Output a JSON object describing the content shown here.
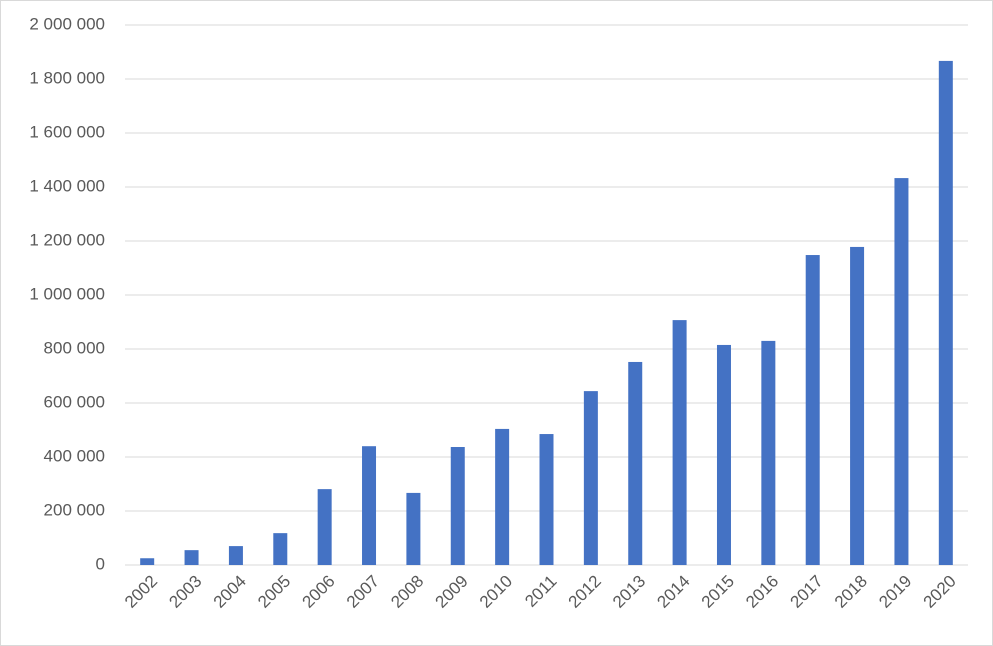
{
  "chart_data": {
    "type": "bar",
    "categories": [
      "2002",
      "2003",
      "2004",
      "2005",
      "2006",
      "2007",
      "2008",
      "2009",
      "2010",
      "2011",
      "2012",
      "2013",
      "2014",
      "2015",
      "2016",
      "2017",
      "2018",
      "2019",
      "2020"
    ],
    "values": [
      25000,
      55000,
      70000,
      118000,
      281000,
      440000,
      267000,
      437000,
      504000,
      485000,
      644000,
      752000,
      907000,
      815000,
      830000,
      1148000,
      1178000,
      1433000,
      1867000
    ],
    "color": "#4472c4",
    "ylim": [
      0,
      2000000
    ],
    "yticks": [
      0,
      {
        "value": 200000,
        "label": "200 000"
      },
      {
        "value": 400000,
        "label": "400 000"
      },
      {
        "value": 600000,
        "label": "600 000"
      },
      {
        "value": 800000,
        "label": "800 000"
      },
      {
        "value": 1000000,
        "label": "1 000 000"
      },
      {
        "value": 1200000,
        "label": "1 200 000"
      },
      {
        "value": 1400000,
        "label": "1 400 000"
      },
      {
        "value": 1600000,
        "label": "1 600 000"
      },
      {
        "value": 1800000,
        "label": "1 800 000"
      },
      {
        "value": 2000000,
        "label": "2 000 000"
      }
    ],
    "grid": true
  }
}
